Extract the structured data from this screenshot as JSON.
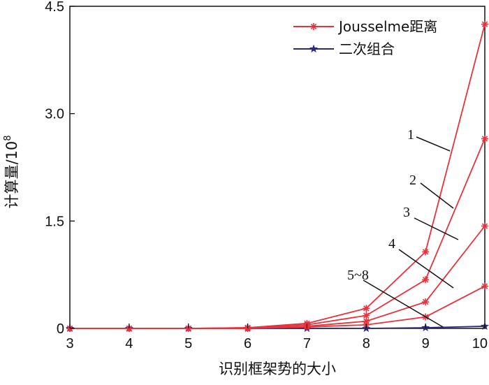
{
  "chart_data": {
    "type": "line",
    "xlabel": "识别框架势的大小",
    "ylabel": "计算量/10",
    "ylabel_sup": "8",
    "x": [
      3,
      4,
      5,
      6,
      7,
      8,
      9,
      10
    ],
    "xlim": [
      3,
      10
    ],
    "ylim": [
      0,
      4.5
    ],
    "x_ticks": [
      "3",
      "4",
      "5",
      "6",
      "7",
      "8",
      "9",
      "10"
    ],
    "y_ticks": [
      {
        "value": 0,
        "label": "0"
      },
      {
        "value": 1.5,
        "label": "1.5"
      },
      {
        "value": 3.0,
        "label": "3.0"
      },
      {
        "value": 4.5,
        "label": "4.5"
      }
    ],
    "grid": false,
    "legend": {
      "position": "top-right",
      "entries": [
        {
          "label": "Jousselme距离",
          "color": "#e8323c",
          "marker": "asterisk"
        },
        {
          "label": "二次组合",
          "color": "#2a2a7a",
          "marker": "star"
        }
      ]
    },
    "series": [
      {
        "group": "Jousselme距离",
        "curve": "1",
        "color": "#e8323c",
        "values": [
          0.0,
          0.0,
          0.0,
          0.01,
          0.07,
          0.28,
          1.07,
          4.25
        ]
      },
      {
        "group": "Jousselme距离",
        "curve": "2",
        "color": "#e8323c",
        "values": [
          0.0,
          0.0,
          0.0,
          0.01,
          0.05,
          0.18,
          0.68,
          2.65
        ]
      },
      {
        "group": "Jousselme距离",
        "curve": "3",
        "color": "#e8323c",
        "values": [
          0.0,
          0.0,
          0.0,
          0.0,
          0.03,
          0.1,
          0.37,
          1.43
        ]
      },
      {
        "group": "Jousselme距离",
        "curve": "4",
        "color": "#e8323c",
        "values": [
          0.0,
          0.0,
          0.0,
          0.0,
          0.02,
          0.05,
          0.16,
          0.59
        ]
      },
      {
        "group": "二次组合",
        "curve": "5~8",
        "color": "#2a2a7a",
        "values": [
          0.0,
          0.0,
          0.0,
          0.0,
          0.0,
          0.0,
          0.01,
          0.03
        ]
      }
    ],
    "annotations": [
      "1",
      "2",
      "3",
      "4",
      "5~8"
    ]
  }
}
